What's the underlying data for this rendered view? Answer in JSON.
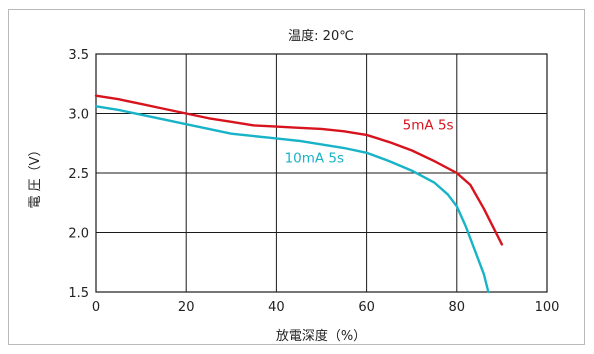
{
  "chart_data": {
    "type": "line",
    "title": "温度: 20℃",
    "xlabel": "放電深度（%）",
    "ylabel": "電 圧（V）",
    "xlim": [
      0,
      100
    ],
    "ylim": [
      1.5,
      3.5
    ],
    "x_ticks": [
      "0",
      "20",
      "40",
      "60",
      "80",
      "100"
    ],
    "y_ticks": [
      "1.5",
      "2.0",
      "2.5",
      "3.0",
      "3.5"
    ],
    "grid": true,
    "series": [
      {
        "name": "5mA 5s",
        "color": "#d7141e",
        "points": [
          [
            0,
            3.15
          ],
          [
            5,
            3.12
          ],
          [
            10,
            3.08
          ],
          [
            15,
            3.04
          ],
          [
            20,
            3.0
          ],
          [
            25,
            2.96
          ],
          [
            30,
            2.93
          ],
          [
            35,
            2.9
          ],
          [
            40,
            2.89
          ],
          [
            45,
            2.88
          ],
          [
            50,
            2.87
          ],
          [
            55,
            2.85
          ],
          [
            60,
            2.82
          ],
          [
            65,
            2.76
          ],
          [
            70,
            2.69
          ],
          [
            75,
            2.6
          ],
          [
            80,
            2.5
          ],
          [
            83,
            2.4
          ],
          [
            86,
            2.2
          ],
          [
            88,
            2.05
          ],
          [
            90,
            1.9
          ]
        ]
      },
      {
        "name": "10mA 5s",
        "color": "#19b3c8",
        "points": [
          [
            0,
            3.06
          ],
          [
            5,
            3.03
          ],
          [
            10,
            2.99
          ],
          [
            15,
            2.95
          ],
          [
            20,
            2.91
          ],
          [
            25,
            2.87
          ],
          [
            30,
            2.83
          ],
          [
            35,
            2.81
          ],
          [
            40,
            2.79
          ],
          [
            45,
            2.77
          ],
          [
            50,
            2.74
          ],
          [
            55,
            2.71
          ],
          [
            60,
            2.67
          ],
          [
            65,
            2.6
          ],
          [
            70,
            2.52
          ],
          [
            75,
            2.42
          ],
          [
            78,
            2.32
          ],
          [
            80,
            2.22
          ],
          [
            82,
            2.05
          ],
          [
            84,
            1.85
          ],
          [
            86,
            1.65
          ],
          [
            87,
            1.5
          ]
        ]
      }
    ]
  }
}
